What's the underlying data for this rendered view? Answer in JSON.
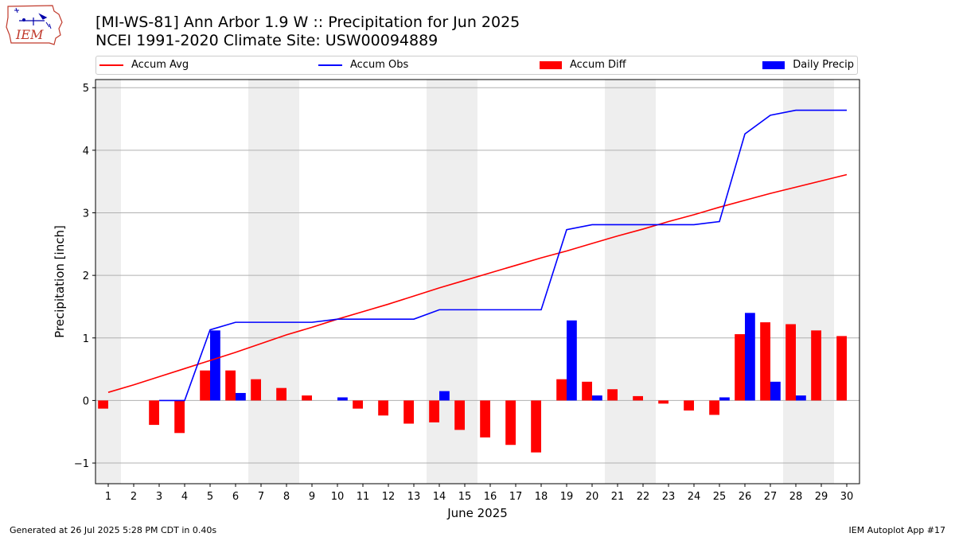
{
  "header": {
    "title_line1": "[MI-WS-81] Ann Arbor 1.9 W :: Precipitation for Jun 2025",
    "title_line2": "NCEI 1991-2020 Climate Site: USW00094889",
    "logo_text": "IEM"
  },
  "legend": {
    "items": [
      {
        "label": "Accum Avg",
        "kind": "line",
        "color": "#ff0000"
      },
      {
        "label": "Accum Obs",
        "kind": "line",
        "color": "#0000ff"
      },
      {
        "label": "Accum Diff",
        "kind": "bar",
        "color": "#ff0000"
      },
      {
        "label": "Daily Precip",
        "kind": "bar",
        "color": "#0000ff"
      }
    ]
  },
  "footer": {
    "generated": "Generated at 26 Jul 2025 5:28 PM CDT in 0.40s",
    "app": "IEM Autoplot App #17"
  },
  "chart_data": {
    "type": "bar",
    "xlabel": "June 2025",
    "ylabel": "Precipitation [inch]",
    "xlim": [
      0.5,
      30.5
    ],
    "ylim": [
      -1.33,
      5.13
    ],
    "yticks": [
      -1,
      0,
      1,
      2,
      3,
      4,
      5
    ],
    "ytick_labels": [
      "−1",
      "0",
      "1",
      "2",
      "3",
      "4",
      "5"
    ],
    "grid": "horizontal",
    "legend_position": "top",
    "days": [
      1,
      2,
      3,
      4,
      5,
      6,
      7,
      8,
      9,
      10,
      11,
      12,
      13,
      14,
      15,
      16,
      17,
      18,
      19,
      20,
      21,
      22,
      23,
      24,
      25,
      26,
      27,
      28,
      29,
      30
    ],
    "weekend_shading": [
      [
        0.5,
        1.5
      ],
      [
        6.5,
        8.5
      ],
      [
        13.5,
        15.5
      ],
      [
        20.5,
        22.5
      ],
      [
        27.5,
        29.5
      ]
    ],
    "shading_color": "#eeeeee",
    "series": [
      {
        "name": "Accum Avg",
        "kind": "line",
        "color": "#ff0000",
        "values": [
          0.13,
          0.25,
          0.38,
          0.51,
          0.64,
          0.77,
          0.91,
          1.05,
          1.17,
          1.3,
          1.42,
          1.54,
          1.67,
          1.8,
          1.92,
          2.04,
          2.16,
          2.28,
          2.39,
          2.51,
          2.63,
          2.74,
          2.86,
          2.97,
          3.09,
          3.2,
          3.31,
          3.41,
          3.51,
          3.61
        ]
      },
      {
        "name": "Accum Obs",
        "kind": "line",
        "color": "#0000ff",
        "x": [
          3,
          4,
          5,
          6,
          7,
          8,
          9,
          10,
          11,
          12,
          13,
          14,
          15,
          16,
          17,
          18,
          19,
          20,
          21,
          22,
          23,
          24,
          25,
          26,
          27,
          28,
          29,
          30
        ],
        "values": [
          0.0,
          0.0,
          1.13,
          1.25,
          1.25,
          1.25,
          1.25,
          1.3,
          1.3,
          1.3,
          1.3,
          1.45,
          1.45,
          1.45,
          1.45,
          1.45,
          2.73,
          2.81,
          2.81,
          2.81,
          2.81,
          2.81,
          2.86,
          4.26,
          4.56,
          4.64,
          4.64,
          4.64
        ]
      },
      {
        "name": "Accum Diff",
        "kind": "bar",
        "color": "#ff0000",
        "values": [
          -0.13,
          null,
          -0.39,
          -0.52,
          0.48,
          0.48,
          0.34,
          0.2,
          0.08,
          null,
          -0.13,
          -0.24,
          -0.37,
          -0.35,
          -0.47,
          -0.59,
          -0.71,
          -0.83,
          0.34,
          0.3,
          0.18,
          0.07,
          -0.05,
          -0.16,
          -0.23,
          1.06,
          1.25,
          1.22,
          1.12,
          1.03
        ]
      },
      {
        "name": "Daily Precip",
        "kind": "bar",
        "color": "#0000ff",
        "values": [
          null,
          null,
          null,
          null,
          1.12,
          0.12,
          null,
          null,
          null,
          0.05,
          null,
          null,
          null,
          0.15,
          null,
          null,
          null,
          null,
          1.28,
          0.08,
          null,
          null,
          null,
          null,
          0.05,
          1.4,
          0.3,
          0.08,
          null,
          null
        ]
      }
    ]
  }
}
